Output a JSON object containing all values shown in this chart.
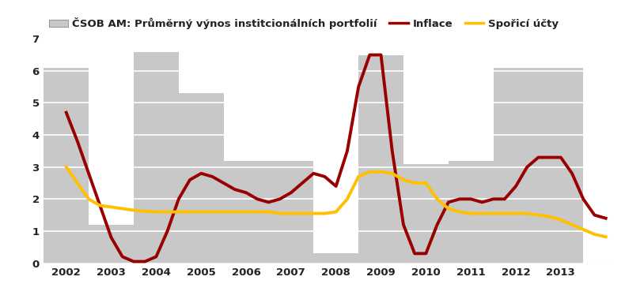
{
  "bar_years": [
    2002,
    2003,
    2004,
    2005,
    2006,
    2007,
    2008,
    2009,
    2010,
    2011,
    2012,
    2013
  ],
  "bar_values": [
    6.1,
    1.2,
    6.6,
    5.3,
    3.2,
    3.2,
    0.3,
    6.5,
    3.1,
    3.2,
    6.1,
    6.1
  ],
  "inflace_x": [
    2002.0,
    2002.25,
    2002.5,
    2002.75,
    2003.0,
    2003.25,
    2003.5,
    2003.75,
    2004.0,
    2004.25,
    2004.5,
    2004.75,
    2005.0,
    2005.25,
    2005.5,
    2005.75,
    2006.0,
    2006.25,
    2006.5,
    2006.75,
    2007.0,
    2007.25,
    2007.5,
    2007.75,
    2008.0,
    2008.25,
    2008.5,
    2008.75,
    2009.0,
    2009.25,
    2009.5,
    2009.75,
    2010.0,
    2010.25,
    2010.5,
    2010.75,
    2011.0,
    2011.25,
    2011.5,
    2011.75,
    2012.0,
    2012.25,
    2012.5,
    2012.75,
    2013.0,
    2013.25,
    2013.5,
    2013.75,
    2014.0
  ],
  "inflace_y": [
    4.7,
    3.8,
    2.8,
    1.8,
    0.8,
    0.2,
    0.05,
    0.05,
    0.2,
    1.0,
    2.0,
    2.6,
    2.8,
    2.7,
    2.5,
    2.3,
    2.2,
    2.0,
    1.9,
    2.0,
    2.2,
    2.5,
    2.8,
    2.7,
    2.4,
    3.5,
    5.5,
    6.5,
    6.5,
    3.5,
    1.2,
    0.3,
    0.3,
    1.2,
    1.9,
    2.0,
    2.0,
    1.9,
    2.0,
    2.0,
    2.4,
    3.0,
    3.3,
    3.3,
    3.3,
    2.8,
    2.0,
    1.5,
    1.4
  ],
  "sporici_x": [
    2002.0,
    2002.25,
    2002.5,
    2002.75,
    2003.0,
    2003.25,
    2003.5,
    2003.75,
    2004.0,
    2004.25,
    2004.5,
    2004.75,
    2005.0,
    2005.25,
    2005.5,
    2005.75,
    2006.0,
    2006.25,
    2006.5,
    2006.75,
    2007.0,
    2007.25,
    2007.5,
    2007.75,
    2008.0,
    2008.25,
    2008.5,
    2008.75,
    2009.0,
    2009.25,
    2009.5,
    2009.75,
    2010.0,
    2010.25,
    2010.5,
    2010.75,
    2011.0,
    2011.25,
    2011.5,
    2011.75,
    2012.0,
    2012.25,
    2012.5,
    2012.75,
    2013.0,
    2013.25,
    2013.5,
    2013.75,
    2014.0
  ],
  "sporici_y": [
    3.0,
    2.5,
    2.0,
    1.8,
    1.75,
    1.7,
    1.65,
    1.62,
    1.6,
    1.6,
    1.6,
    1.6,
    1.6,
    1.6,
    1.6,
    1.6,
    1.6,
    1.6,
    1.6,
    1.55,
    1.55,
    1.55,
    1.55,
    1.55,
    1.6,
    2.0,
    2.7,
    2.85,
    2.85,
    2.8,
    2.6,
    2.5,
    2.5,
    2.0,
    1.7,
    1.6,
    1.55,
    1.55,
    1.55,
    1.55,
    1.55,
    1.55,
    1.5,
    1.45,
    1.35,
    1.2,
    1.05,
    0.9,
    0.82
  ],
  "bar_color": "#c8c8c8",
  "inflace_color": "#990000",
  "sporici_color": "#FFC000",
  "ylim": [
    0,
    7
  ],
  "yticks": [
    0,
    1,
    2,
    3,
    4,
    5,
    6,
    7
  ],
  "xlim_left": 2001.5,
  "xlim_right": 2014.15,
  "bar_width": 1.0,
  "legend_label_bar": "ČSOB AM: Průměrný výnos institcionálních portfolií",
  "legend_label_inflace": "Inflace",
  "legend_label_sporici": "Spořicí účty"
}
